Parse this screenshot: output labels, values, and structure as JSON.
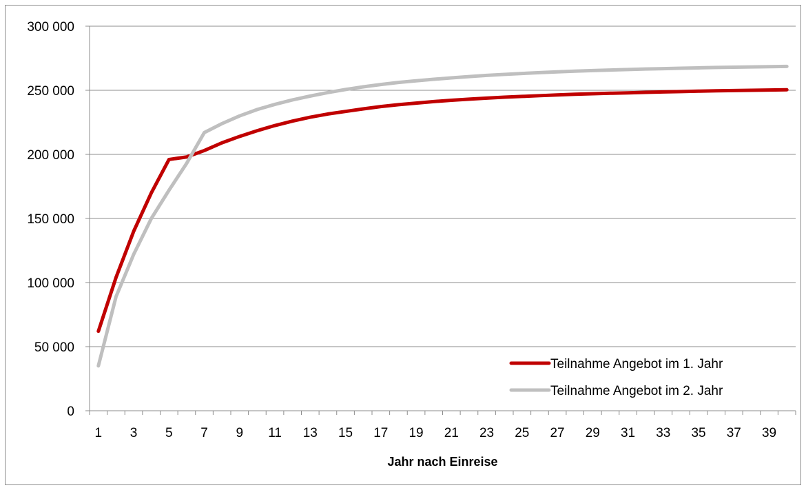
{
  "chart_data": {
    "type": "line",
    "title": "",
    "xlabel": "Jahr nach Einreise",
    "ylabel": "",
    "ylim": [
      0,
      300000
    ],
    "yticks": [
      0,
      50000,
      100000,
      150000,
      200000,
      250000,
      300000
    ],
    "ytick_labels": [
      "0",
      "50 000",
      "100 000",
      "150 000",
      "200 000",
      "250 000",
      "300 000"
    ],
    "xlim": [
      1,
      40
    ],
    "xtick_labels": [
      "1",
      "3",
      "5",
      "7",
      "9",
      "11",
      "13",
      "15",
      "17",
      "19",
      "21",
      "23",
      "25",
      "27",
      "29",
      "31",
      "33",
      "35",
      "37",
      "39"
    ],
    "grid": "horizontal",
    "legend_position": "bottom-right",
    "x": [
      1,
      2,
      3,
      4,
      5,
      6,
      7,
      8,
      9,
      10,
      11,
      12,
      13,
      14,
      15,
      16,
      17,
      18,
      19,
      20,
      21,
      22,
      23,
      24,
      25,
      26,
      27,
      28,
      29,
      30,
      31,
      32,
      33,
      34,
      35,
      36,
      37,
      38,
      39,
      40
    ],
    "series": [
      {
        "name": "Teilnahme Angebot im 1. Jahr",
        "color": "#c00000",
        "values": [
          62000,
          104000,
          140000,
          170000,
          196000,
          198000,
          203000,
          209000,
          214000,
          218500,
          222500,
          226000,
          229000,
          231500,
          233500,
          235500,
          237300,
          238800,
          240000,
          241200,
          242200,
          243100,
          243900,
          244600,
          245200,
          245800,
          246400,
          246900,
          247300,
          247700,
          248000,
          248400,
          248700,
          249000,
          249300,
          249600,
          249800,
          250000,
          250200,
          250400
        ]
      },
      {
        "name": "Teilnahme Angebot im 2. Jahr",
        "color": "#bfbfbf",
        "values": [
          35000,
          89000,
          122000,
          150000,
          172000,
          193000,
          217000,
          224000,
          230000,
          235000,
          239000,
          242500,
          245500,
          248200,
          250600,
          252700,
          254500,
          256100,
          257400,
          258600,
          259700,
          260700,
          261600,
          262400,
          263100,
          263800,
          264400,
          264900,
          265400,
          265800,
          266200,
          266600,
          266900,
          267200,
          267500,
          267800,
          268000,
          268200,
          268400,
          268600
        ]
      }
    ]
  }
}
